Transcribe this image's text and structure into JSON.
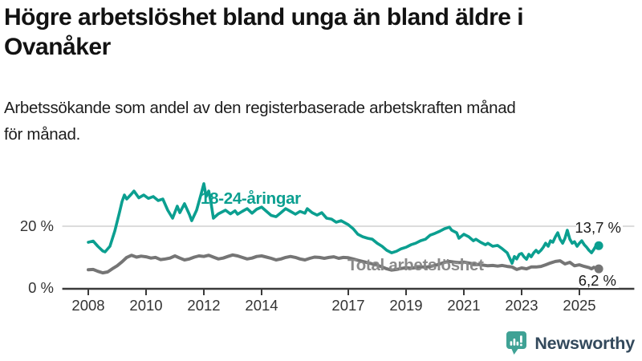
{
  "header": {
    "title": "Högre arbetslöshet bland unga än bland äldre i\nOvanåker",
    "subtitle": "Arbetssökande som andel av den registerbaserade arbetskraften månad\nför månad."
  },
  "branding": {
    "name": "Newsworthy",
    "icon": "bar-chart-speech-bubble-icon",
    "icon_color": "#3fa295",
    "text_color": "#33495c"
  },
  "chart_data": {
    "type": "line",
    "title": "Högre arbetslöshet bland unga än bland äldre i Ovanåker",
    "subtitle": "Arbetssökande som andel av den registerbaserade arbetskraften månad för månad.",
    "xlabel": "",
    "ylabel": "",
    "x_range": [
      2007.1,
      2026.9
    ],
    "ylim": [
      0,
      36
    ],
    "grid_lines_y": [
      20
    ],
    "grid_color": "#dcdcdc",
    "axis_color": "#3a3a3a",
    "tick_label_color": "#333333",
    "x_ticks": [
      {
        "value": 2008,
        "label": "2008"
      },
      {
        "value": 2010,
        "label": "2010"
      },
      {
        "value": 2012,
        "label": "2012"
      },
      {
        "value": 2014,
        "label": "2014"
      },
      {
        "value": 2017,
        "label": "2017"
      },
      {
        "value": 2019,
        "label": "2019"
      },
      {
        "value": 2021,
        "label": "2021"
      },
      {
        "value": 2023,
        "label": "2023"
      },
      {
        "value": 2025,
        "label": "2025"
      }
    ],
    "y_ticks": [
      {
        "value": 0,
        "label": "0 %"
      },
      {
        "value": 20,
        "label": "20 %"
      }
    ],
    "series": [
      {
        "name": "18-24-åringar",
        "color": "#0b9f90",
        "label_color": "#0b9f90",
        "end_label": "13,7 %",
        "end_value": 13.7,
        "points": [
          [
            2008.0,
            14.8
          ],
          [
            2008.17,
            15.2
          ],
          [
            2008.33,
            13.5
          ],
          [
            2008.5,
            12.0
          ],
          [
            2008.58,
            11.7
          ],
          [
            2008.75,
            13.5
          ],
          [
            2008.92,
            18.5
          ],
          [
            2009.08,
            24.5
          ],
          [
            2009.17,
            28.0
          ],
          [
            2009.25,
            30.1
          ],
          [
            2009.33,
            28.8
          ],
          [
            2009.5,
            30.5
          ],
          [
            2009.58,
            31.4
          ],
          [
            2009.75,
            29.2
          ],
          [
            2009.92,
            30.1
          ],
          [
            2010.08,
            29.0
          ],
          [
            2010.25,
            29.6
          ],
          [
            2010.42,
            28.3
          ],
          [
            2010.58,
            28.8
          ],
          [
            2010.75,
            25.2
          ],
          [
            2010.92,
            22.6
          ],
          [
            2011.08,
            26.5
          ],
          [
            2011.17,
            24.4
          ],
          [
            2011.33,
            27.3
          ],
          [
            2011.5,
            23.8
          ],
          [
            2011.58,
            21.8
          ],
          [
            2011.75,
            25.2
          ],
          [
            2011.92,
            30.9
          ],
          [
            2012.0,
            33.8
          ],
          [
            2012.08,
            29.6
          ],
          [
            2012.17,
            31.4
          ],
          [
            2012.25,
            27.5
          ],
          [
            2012.33,
            22.6
          ],
          [
            2012.5,
            24.0
          ],
          [
            2012.75,
            25.2
          ],
          [
            2012.92,
            24.0
          ],
          [
            2013.08,
            25.0
          ],
          [
            2013.17,
            23.9
          ],
          [
            2013.33,
            24.8
          ],
          [
            2013.5,
            25.7
          ],
          [
            2013.67,
            24.2
          ],
          [
            2013.83,
            25.5
          ],
          [
            2014.0,
            26.2
          ],
          [
            2014.17,
            24.8
          ],
          [
            2014.33,
            23.5
          ],
          [
            2014.5,
            23.1
          ],
          [
            2014.67,
            24.4
          ],
          [
            2014.83,
            25.7
          ],
          [
            2015.0,
            24.8
          ],
          [
            2015.17,
            23.9
          ],
          [
            2015.33,
            24.8
          ],
          [
            2015.5,
            24.2
          ],
          [
            2015.58,
            25.7
          ],
          [
            2015.75,
            24.4
          ],
          [
            2015.92,
            23.6
          ],
          [
            2016.08,
            24.4
          ],
          [
            2016.25,
            22.6
          ],
          [
            2016.42,
            22.3
          ],
          [
            2016.58,
            21.3
          ],
          [
            2016.75,
            21.8
          ],
          [
            2016.92,
            20.9
          ],
          [
            2017.0,
            20.5
          ],
          [
            2017.17,
            19.2
          ],
          [
            2017.33,
            17.4
          ],
          [
            2017.5,
            16.6
          ],
          [
            2017.67,
            16.1
          ],
          [
            2017.83,
            15.8
          ],
          [
            2018.0,
            14.5
          ],
          [
            2018.17,
            13.5
          ],
          [
            2018.33,
            12.2
          ],
          [
            2018.5,
            11.4
          ],
          [
            2018.67,
            11.9
          ],
          [
            2018.83,
            12.7
          ],
          [
            2019.0,
            13.2
          ],
          [
            2019.17,
            14.0
          ],
          [
            2019.33,
            14.5
          ],
          [
            2019.5,
            15.3
          ],
          [
            2019.67,
            15.8
          ],
          [
            2019.83,
            17.1
          ],
          [
            2020.0,
            17.7
          ],
          [
            2020.17,
            18.4
          ],
          [
            2020.33,
            19.2
          ],
          [
            2020.5,
            19.7
          ],
          [
            2020.58,
            18.7
          ],
          [
            2020.75,
            17.9
          ],
          [
            2020.83,
            16.1
          ],
          [
            2021.0,
            17.4
          ],
          [
            2021.17,
            16.6
          ],
          [
            2021.33,
            15.3
          ],
          [
            2021.42,
            15.8
          ],
          [
            2021.58,
            14.8
          ],
          [
            2021.75,
            14.0
          ],
          [
            2021.83,
            14.5
          ],
          [
            2022.0,
            13.5
          ],
          [
            2022.17,
            13.8
          ],
          [
            2022.33,
            12.7
          ],
          [
            2022.5,
            11.4
          ],
          [
            2022.58,
            9.8
          ],
          [
            2022.67,
            8.0
          ],
          [
            2022.75,
            10.2
          ],
          [
            2022.83,
            9.4
          ],
          [
            2022.92,
            10.9
          ],
          [
            2023.0,
            11.2
          ],
          [
            2023.08,
            10.1
          ],
          [
            2023.17,
            9.3
          ],
          [
            2023.25,
            10.9
          ],
          [
            2023.33,
            10.1
          ],
          [
            2023.42,
            11.4
          ],
          [
            2023.5,
            12.2
          ],
          [
            2023.58,
            11.4
          ],
          [
            2023.67,
            12.2
          ],
          [
            2023.75,
            13.2
          ],
          [
            2023.83,
            14.5
          ],
          [
            2023.92,
            13.5
          ],
          [
            2024.0,
            15.3
          ],
          [
            2024.08,
            14.8
          ],
          [
            2024.17,
            16.6
          ],
          [
            2024.25,
            17.9
          ],
          [
            2024.33,
            15.8
          ],
          [
            2024.42,
            14.5
          ],
          [
            2024.5,
            16.1
          ],
          [
            2024.58,
            18.7
          ],
          [
            2024.67,
            15.8
          ],
          [
            2024.75,
            14.5
          ],
          [
            2024.83,
            15.0
          ],
          [
            2024.92,
            13.5
          ],
          [
            2025.0,
            14.5
          ],
          [
            2025.08,
            15.3
          ],
          [
            2025.17,
            14.0
          ],
          [
            2025.25,
            13.2
          ],
          [
            2025.33,
            12.2
          ],
          [
            2025.42,
            11.4
          ],
          [
            2025.5,
            12.5
          ],
          [
            2025.58,
            13.8
          ],
          [
            2025.67,
            13.7
          ]
        ]
      },
      {
        "name": "Total arbetslöshet",
        "color": "#757575",
        "label_color": "#8a8a8a",
        "end_label": "6,2 %",
        "end_value": 6.2,
        "points": [
          [
            2008.0,
            5.9
          ],
          [
            2008.17,
            6.0
          ],
          [
            2008.33,
            5.4
          ],
          [
            2008.5,
            4.9
          ],
          [
            2008.67,
            5.2
          ],
          [
            2008.83,
            6.2
          ],
          [
            2009.0,
            7.2
          ],
          [
            2009.17,
            8.5
          ],
          [
            2009.33,
            9.9
          ],
          [
            2009.5,
            10.6
          ],
          [
            2009.67,
            10.0
          ],
          [
            2009.83,
            10.3
          ],
          [
            2010.0,
            10.1
          ],
          [
            2010.17,
            9.7
          ],
          [
            2010.33,
            9.9
          ],
          [
            2010.5,
            9.2
          ],
          [
            2010.67,
            9.4
          ],
          [
            2010.83,
            9.7
          ],
          [
            2011.0,
            10.4
          ],
          [
            2011.17,
            9.7
          ],
          [
            2011.33,
            9.1
          ],
          [
            2011.5,
            9.4
          ],
          [
            2011.67,
            10.0
          ],
          [
            2011.83,
            10.4
          ],
          [
            2012.0,
            10.2
          ],
          [
            2012.17,
            10.6
          ],
          [
            2012.33,
            10.0
          ],
          [
            2012.5,
            9.4
          ],
          [
            2012.67,
            9.7
          ],
          [
            2012.83,
            10.2
          ],
          [
            2013.0,
            10.7
          ],
          [
            2013.17,
            10.4
          ],
          [
            2013.33,
            9.9
          ],
          [
            2013.5,
            9.4
          ],
          [
            2013.67,
            9.7
          ],
          [
            2013.83,
            10.2
          ],
          [
            2014.0,
            10.4
          ],
          [
            2014.17,
            10.0
          ],
          [
            2014.33,
            9.6
          ],
          [
            2014.5,
            9.1
          ],
          [
            2014.67,
            9.4
          ],
          [
            2014.83,
            9.9
          ],
          [
            2015.0,
            10.2
          ],
          [
            2015.17,
            9.9
          ],
          [
            2015.33,
            9.4
          ],
          [
            2015.5,
            9.1
          ],
          [
            2015.67,
            9.6
          ],
          [
            2015.83,
            10.0
          ],
          [
            2016.0,
            9.9
          ],
          [
            2016.17,
            9.6
          ],
          [
            2016.33,
            9.9
          ],
          [
            2016.5,
            10.1
          ],
          [
            2016.67,
            9.6
          ],
          [
            2016.83,
            9.9
          ],
          [
            2017.0,
            9.8
          ],
          [
            2017.17,
            9.4
          ],
          [
            2017.33,
            9.0
          ],
          [
            2017.5,
            8.6
          ],
          [
            2017.67,
            8.2
          ],
          [
            2017.83,
            7.8
          ],
          [
            2018.0,
            7.4
          ],
          [
            2018.17,
            6.8
          ],
          [
            2018.33,
            6.2
          ],
          [
            2018.5,
            5.8
          ],
          [
            2018.67,
            6.0
          ],
          [
            2018.83,
            6.3
          ],
          [
            2019.0,
            6.6
          ],
          [
            2019.17,
            6.4
          ],
          [
            2019.33,
            6.6
          ],
          [
            2019.5,
            6.9
          ],
          [
            2019.67,
            6.7
          ],
          [
            2019.83,
            7.0
          ],
          [
            2020.0,
            7.3
          ],
          [
            2020.17,
            7.8
          ],
          [
            2020.33,
            8.3
          ],
          [
            2020.5,
            8.6
          ],
          [
            2020.67,
            8.4
          ],
          [
            2020.83,
            8.2
          ],
          [
            2021.0,
            8.4
          ],
          [
            2021.17,
            8.1
          ],
          [
            2021.33,
            7.8
          ],
          [
            2021.5,
            7.6
          ],
          [
            2021.67,
            7.4
          ],
          [
            2021.83,
            7.2
          ],
          [
            2022.0,
            7.3
          ],
          [
            2022.17,
            7.1
          ],
          [
            2022.33,
            7.3
          ],
          [
            2022.5,
            7.0
          ],
          [
            2022.67,
            6.8
          ],
          [
            2022.83,
            6.0
          ],
          [
            2023.0,
            6.5
          ],
          [
            2023.17,
            6.2
          ],
          [
            2023.33,
            6.8
          ],
          [
            2023.5,
            6.8
          ],
          [
            2023.67,
            7.0
          ],
          [
            2023.83,
            7.5
          ],
          [
            2024.0,
            8.1
          ],
          [
            2024.17,
            8.6
          ],
          [
            2024.33,
            8.8
          ],
          [
            2024.5,
            7.8
          ],
          [
            2024.67,
            8.3
          ],
          [
            2024.83,
            7.2
          ],
          [
            2025.0,
            7.5
          ],
          [
            2025.17,
            7.0
          ],
          [
            2025.33,
            6.6
          ],
          [
            2025.42,
            6.2
          ],
          [
            2025.5,
            6.7
          ],
          [
            2025.58,
            6.4
          ],
          [
            2025.67,
            6.2
          ]
        ]
      }
    ]
  }
}
